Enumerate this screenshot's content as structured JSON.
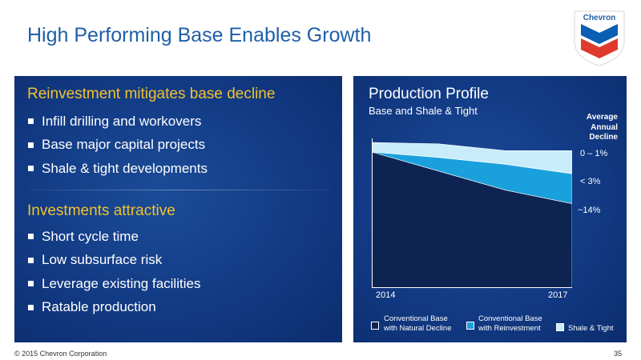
{
  "slide": {
    "title": "High Performing Base Enables Growth",
    "logo_text": "Chevron"
  },
  "left_panel": {
    "section1": {
      "heading": "Reinvestment mitigates base decline",
      "bullets": [
        "Infill drilling and workovers",
        "Base major capital projects",
        "Shale & tight developments"
      ]
    },
    "section2": {
      "heading": "Investments attractive",
      "bullets": [
        "Short cycle time",
        "Low subsurface risk",
        "Leverage existing facilities",
        "Ratable production"
      ]
    }
  },
  "colors": {
    "title": "#1f5fa8",
    "heading": "#f2c12e",
    "panel": "#123a84",
    "series_natural_decline": "#0d2452",
    "series_reinvestment": "#1aa0dc",
    "series_shale": "#c9ecfb"
  },
  "chart_data": {
    "type": "area",
    "title": "Production Profile",
    "subtitle": "Base and Shale & Tight",
    "x": [
      2014,
      2015,
      2016,
      2017
    ],
    "x_tick_labels": [
      "2014",
      "2017"
    ],
    "stacked": true,
    "series": [
      {
        "name": "Conventional Base with Natural Decline",
        "legend_lines": [
          "Conventional Base",
          "with Natural Decline"
        ],
        "decline": "~14%",
        "values": [
          100,
          86,
          72,
          62
        ]
      },
      {
        "name": "Conventional Base with Reinvestment",
        "legend_lines": [
          "Conventional Base",
          "with Reinvestment"
        ],
        "decline": "< 3%",
        "values": [
          0,
          10,
          19,
          22
        ]
      },
      {
        "name": "Shale & Tight",
        "legend_lines": [
          "Shale & Tight"
        ],
        "decline": "0 – 1%",
        "values": [
          7,
          10,
          10,
          17
        ]
      }
    ],
    "decline_header": [
      "Average",
      "Annual",
      "Decline"
    ],
    "ylim": [
      0,
      110
    ],
    "grid": false,
    "legend": "bottom"
  },
  "footer": {
    "copyright": "© 2015 Chevron Corporation",
    "page": "35"
  }
}
